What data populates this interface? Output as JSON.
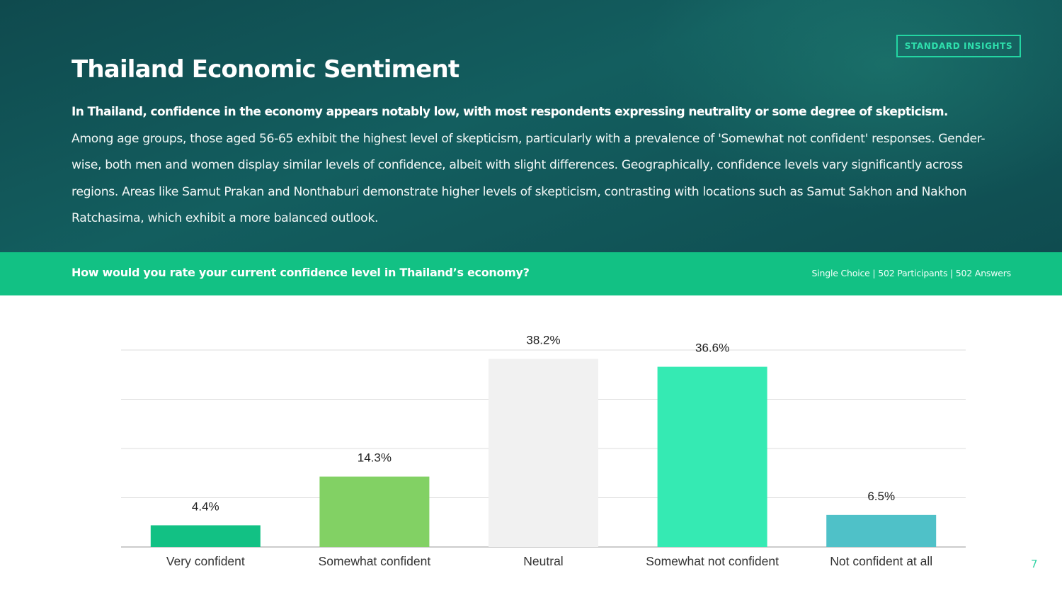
{
  "header": {
    "badge": "STANDARD INSIGHTS",
    "title": "Thailand Economic Sentiment",
    "summary_lead": "In Thailand, confidence in the economy appears notably low, with most respondents expressing neutrality or some degree of skepticism.",
    "summary_body": "Among age groups, those aged 56-65 exhibit the highest level of skepticism, particularly with a prevalence of 'Somewhat not confident' responses. Gender-wise, both men and women display similar levels of confidence, albeit with slight differences. Geographically, confidence levels vary significantly across regions. Areas like Samut Prakan and Nonthaburi demonstrate higher levels of skepticism, contrasting with locations such as Samut Sakhon and Nakhon Ratchasima, which exhibit a more balanced outlook."
  },
  "question_bar": {
    "question": "How would you rate your current confidence level in Thailand’s economy?",
    "meta": "Single Choice | 502 Participants | 502 Answers"
  },
  "page_number": "7",
  "chart_data": {
    "type": "bar",
    "categories": [
      "Very confident",
      "Somewhat confident",
      "Neutral",
      "Somewhat not confident",
      "Not confident at all"
    ],
    "values": [
      4.4,
      14.3,
      38.2,
      36.6,
      6.5
    ],
    "data_labels": [
      "4.4%",
      "14.3%",
      "38.2%",
      "36.6%",
      "6.5%"
    ],
    "colors": [
      "#12c184",
      "#82d164",
      "#f1f1f1",
      "#35eab3",
      "#4fc1c8"
    ],
    "ylim": [
      0,
      40
    ],
    "grid": true,
    "legend": "none"
  }
}
